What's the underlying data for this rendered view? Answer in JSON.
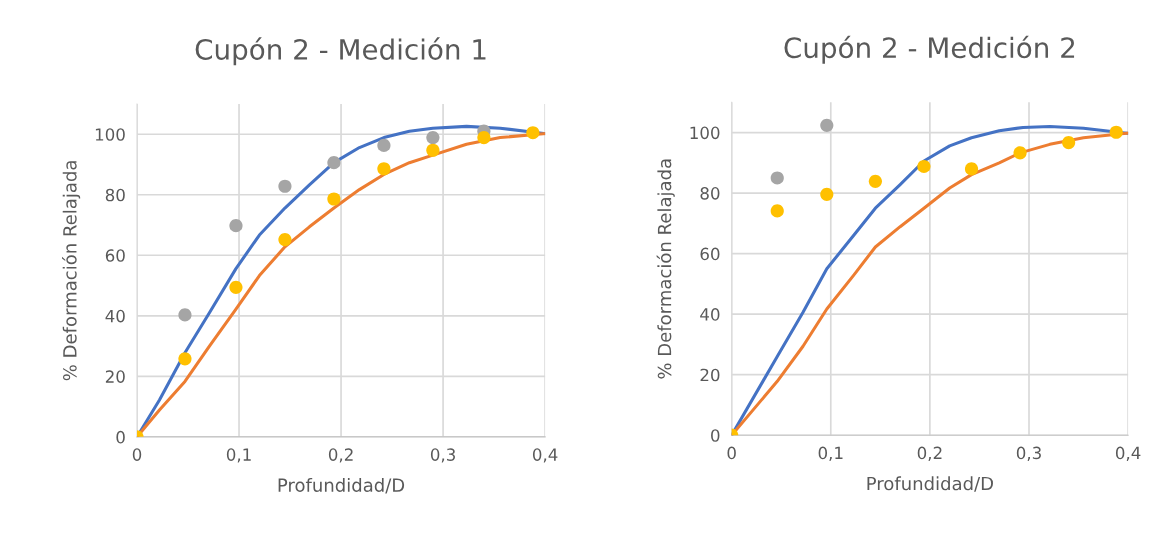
{
  "chart_data": [
    {
      "type": "line",
      "title": "Cupón 2 - Medición 1",
      "xlabel": "Profundidad/D",
      "ylabel": "% Deformación Relajada",
      "xlim": [
        0,
        0.4
      ],
      "ylim": [
        0,
        110
      ],
      "xticks": [
        0,
        {
          "value": 0.1,
          "label": "0,1"
        },
        {
          "value": 0.2,
          "label": "0,2"
        },
        {
          "value": 0.3,
          "label": "0,3"
        },
        {
          "value": 0.4,
          "label": "0,4"
        }
      ],
      "yticks": [
        0,
        20,
        40,
        60,
        80,
        100
      ],
      "grid": true,
      "legend": false,
      "series": [
        {
          "color": "#4472c4",
          "x": [
            0,
            0.022,
            0.047,
            0.071,
            0.097,
            0.12,
            0.145,
            0.169,
            0.193,
            0.218,
            0.242,
            0.267,
            0.29,
            0.323,
            0.356,
            0.4
          ],
          "values": [
            0,
            12.2,
            27.8,
            41,
            55.6,
            66.7,
            75.6,
            83.3,
            90.6,
            95.6,
            98.9,
            101,
            102,
            102.6,
            102,
            100.2
          ]
        },
        {
          "color": "#ed7d31",
          "x": [
            0,
            0.022,
            0.047,
            0.071,
            0.097,
            0.12,
            0.145,
            0.169,
            0.193,
            0.218,
            0.242,
            0.267,
            0.29,
            0.323,
            0.356,
            0.4
          ],
          "values": [
            0,
            8.9,
            18.3,
            30,
            42.2,
            53.3,
            62.8,
            69.4,
            75.6,
            81.7,
            86.7,
            90.6,
            93.1,
            96.7,
            98.9,
            100.2
          ]
        },
        {
          "type": "scatter",
          "marker": "circle",
          "color": "#a5a5a5",
          "x": [
            0.047,
            0.097,
            0.145,
            0.193,
            0.242,
            0.29,
            0.34
          ],
          "values": [
            40.3,
            69.8,
            82.8,
            90.6,
            96.3,
            98.9,
            101
          ]
        },
        {
          "type": "scatter",
          "marker": "circle",
          "color": "#ffc000",
          "x": [
            0,
            0.047,
            0.097,
            0.145,
            0.193,
            0.242,
            0.29,
            0.34,
            0.388
          ],
          "values": [
            0,
            25.8,
            49.4,
            65.2,
            78.6,
            88.6,
            94.7,
            98.9,
            100.5
          ]
        }
      ]
    },
    {
      "type": "line",
      "title": "Cupón 2 - Medición 2",
      "xlabel": "Profundidad/D",
      "ylabel": "% Deformación Relajada",
      "xlim": [
        0,
        0.4
      ],
      "ylim": [
        0,
        110
      ],
      "xticks": [
        0,
        {
          "value": 0.1,
          "label": "0,1"
        },
        {
          "value": 0.2,
          "label": "0,2"
        },
        {
          "value": 0.3,
          "label": "0,3"
        },
        {
          "value": 0.4,
          "label": "0,4"
        }
      ],
      "yticks": [
        0,
        20,
        40,
        60,
        80,
        100
      ],
      "grid": true,
      "legend": false,
      "series": [
        {
          "color": "#4472c4",
          "x": [
            0,
            0.046,
            0.072,
            0.096,
            0.123,
            0.145,
            0.17,
            0.194,
            0.22,
            0.242,
            0.27,
            0.294,
            0.321,
            0.355,
            0.4
          ],
          "values": [
            0,
            26,
            40.6,
            55,
            66,
            75,
            82.8,
            90.6,
            95.6,
            98.3,
            100.6,
            101.7,
            102,
            101.4,
            99.7
          ]
        },
        {
          "color": "#ed7d31",
          "x": [
            0,
            0.046,
            0.072,
            0.096,
            0.123,
            0.145,
            0.17,
            0.194,
            0.22,
            0.242,
            0.27,
            0.291,
            0.321,
            0.355,
            0.4
          ],
          "values": [
            0,
            17.8,
            29.4,
            41.7,
            52.8,
            62.2,
            68.9,
            75,
            81.7,
            86.1,
            90,
            93.3,
            96.1,
            98.3,
            99.8
          ]
        },
        {
          "type": "scatter",
          "marker": "circle",
          "color": "#a5a5a5",
          "x": [
            0.046,
            0.096
          ],
          "values": [
            85,
            102.4
          ]
        },
        {
          "type": "scatter",
          "marker": "circle",
          "color": "#ffc000",
          "x": [
            0,
            0.046,
            0.096,
            0.145,
            0.194,
            0.242,
            0.291,
            0.34,
            0.388
          ],
          "values": [
            0,
            74.1,
            79.6,
            83.9,
            88.8,
            88,
            93.3,
            96.7,
            100.1
          ]
        }
      ]
    }
  ]
}
